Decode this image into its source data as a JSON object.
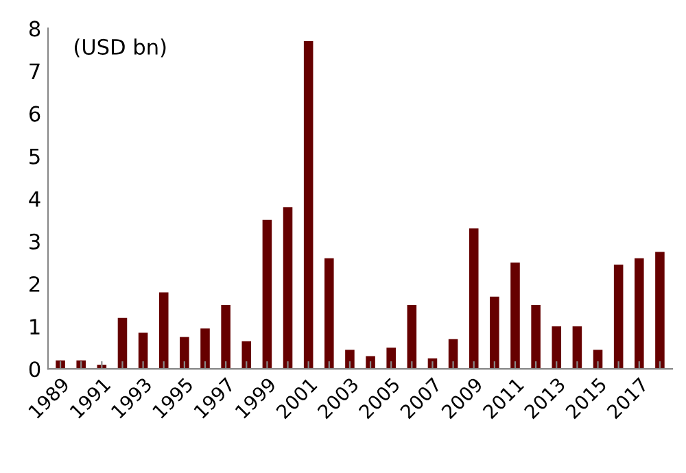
{
  "chart_data": {
    "type": "bar",
    "categories": [
      "1989",
      null,
      "1991",
      null,
      "1993",
      null,
      "1995",
      null,
      "1997",
      null,
      "1999",
      null,
      "2001",
      null,
      "2003",
      null,
      "2005",
      null,
      "2007",
      null,
      "2009",
      null,
      "2011",
      null,
      "2013",
      null,
      "2015",
      null,
      "2017",
      null
    ],
    "values": [
      0.2,
      0.2,
      0.1,
      1.2,
      0.85,
      1.8,
      0.75,
      0.95,
      1.5,
      0.65,
      3.5,
      3.8,
      7.7,
      2.6,
      0.45,
      0.3,
      0.5,
      1.5,
      0.25,
      0.7,
      3.3,
      1.7,
      2.5,
      1.5,
      1.0,
      1.0,
      0.45,
      2.45,
      2.6,
      2.75
    ],
    "color": "#660000",
    "ylim": [
      0,
      8
    ],
    "yticks": [
      0,
      1,
      2,
      3,
      4,
      5,
      6,
      7,
      8
    ],
    "annotations": [
      "(USD bn)"
    ],
    "grid": false,
    "legend": false
  }
}
